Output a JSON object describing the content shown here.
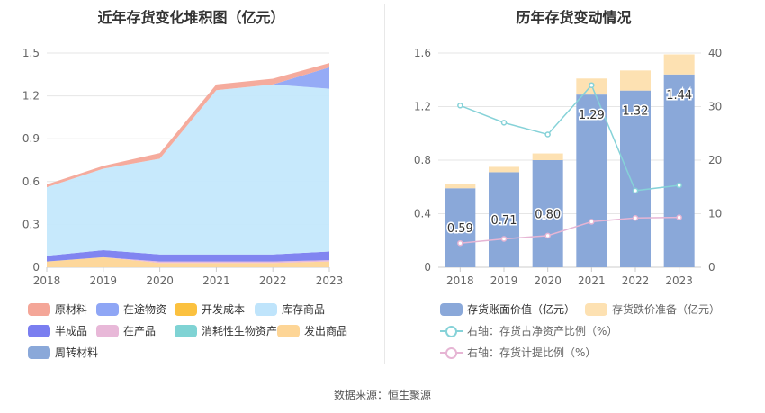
{
  "titles": {
    "left": "近年存货变化堆积图（亿元）",
    "right": "历年存货变动情况"
  },
  "source": "数据来源：恒生聚源",
  "colors": {
    "原材料": "#f4a698",
    "在途物资": "#8fa6f5",
    "开发成本": "#fbc13f",
    "库存商品": "#c8eafc",
    "半成品": "#7a7ef0",
    "在产品": "#e8b8d8",
    "消耗性生物资产": "#7fd3d4",
    "发出商品": "#fdd596",
    "周转材料": "#8aa8d9",
    "存货账面价值": "#8aa8d9",
    "存货跌价准备": "#fde1b2",
    "存货占净资产比例": "#86d2d8",
    "存货计提比例": "#e6b5d4"
  },
  "chart_data": [
    {
      "type": "area",
      "title": "近年存货变化堆积图（亿元）",
      "x": [
        "2018",
        "2019",
        "2020",
        "2021",
        "2022",
        "2023"
      ],
      "ylim": [
        0,
        1.5
      ],
      "yticks": [
        "0",
        "0.3",
        "0.6",
        "0.9",
        "1.2",
        "1.5"
      ],
      "stacked": true,
      "series": [
        {
          "name": "发出商品",
          "values": [
            0.04,
            0.07,
            0.03,
            0.03,
            0.03,
            0.04
          ]
        },
        {
          "name": "在产品",
          "values": [
            0.0,
            0.0,
            0.01,
            0.01,
            0.01,
            0.01
          ]
        },
        {
          "name": "半成品",
          "values": [
            0.04,
            0.05,
            0.05,
            0.05,
            0.05,
            0.06
          ]
        },
        {
          "name": "库存商品",
          "values": [
            0.48,
            0.57,
            0.67,
            1.15,
            1.19,
            1.14
          ]
        },
        {
          "name": "在途物资",
          "values": [
            0.0,
            0.0,
            0.0,
            0.0,
            0.0,
            0.15
          ]
        },
        {
          "name": "原材料",
          "values": [
            0.02,
            0.02,
            0.04,
            0.04,
            0.04,
            0.03
          ]
        },
        {
          "name": "周转材料",
          "values": [
            0.0,
            0.0,
            0.0,
            0.0,
            0.0,
            0.0
          ]
        },
        {
          "name": "开发成本",
          "values": [
            0.0,
            0.0,
            0.0,
            0.0,
            0.0,
            0.0
          ]
        },
        {
          "name": "消耗性生物资产",
          "values": [
            0.0,
            0.0,
            0.0,
            0.0,
            0.0,
            0.0
          ]
        }
      ],
      "legend": [
        "原材料",
        "在途物资",
        "开发成本",
        "库存商品",
        "半成品",
        "在产品",
        "消耗性生物资产",
        "发出商品",
        "周转材料"
      ],
      "legend_placement": "bottom",
      "grid": true
    },
    {
      "type": "bar",
      "title": "历年存货变动情况",
      "x": [
        "2018",
        "2019",
        "2020",
        "2021",
        "2022",
        "2023"
      ],
      "ylim": [
        0,
        1.6
      ],
      "yticks": [
        "0",
        "0.4",
        "0.8",
        "1.2",
        "1.6"
      ],
      "y2lim": [
        0,
        40
      ],
      "y2ticks": [
        "0",
        "10",
        "20",
        "30",
        "40"
      ],
      "stacked": true,
      "series": [
        {
          "name": "存货账面价值（亿元）",
          "values": [
            0.59,
            0.71,
            0.8,
            1.29,
            1.32,
            1.44
          ],
          "labels": [
            "0.59",
            "0.71",
            "0.80",
            "1.29",
            "1.32",
            "1.44"
          ]
        },
        {
          "name": "存货跌价准备（亿元）",
          "values": [
            0.03,
            0.04,
            0.05,
            0.12,
            0.15,
            0.15
          ]
        }
      ],
      "lines": [
        {
          "name": "右轴：存货占净资产比例（%）",
          "axis": "right",
          "values": [
            30.2,
            27.0,
            24.8,
            34.0,
            14.3,
            15.3
          ]
        },
        {
          "name": "右轴：存货计提比例（%）",
          "axis": "right",
          "values": [
            4.5,
            5.3,
            5.9,
            8.5,
            9.2,
            9.3
          ]
        }
      ],
      "legend_placement": "bottom",
      "grid": true
    }
  ],
  "legend_left": {
    "items": [
      "原材料",
      "在途物资",
      "开发成本",
      "库存商品",
      "半成品",
      "在产品",
      "消耗性生物资产",
      "发出商品",
      "周转材料"
    ]
  },
  "legend_right": {
    "bar1": "存货账面价值（亿元）",
    "bar2": "存货跌价准备（亿元）",
    "line1": "右轴：存货占净资产比例（%）",
    "line2": "右轴：存货计提比例（%）"
  }
}
